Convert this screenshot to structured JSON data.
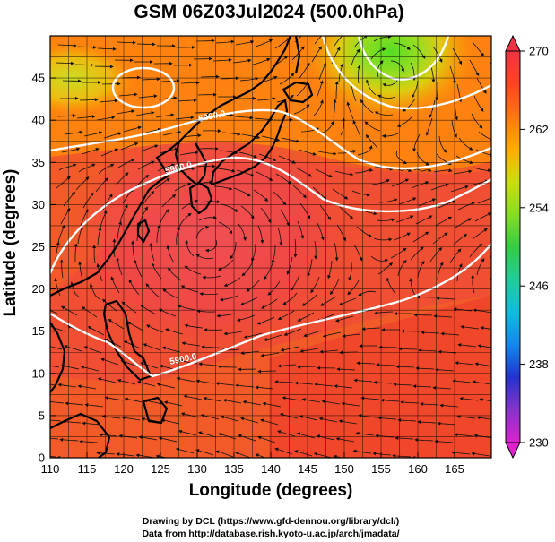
{
  "title": "GSM 06Z03Jul2024 (500.0hPa)",
  "x_axis": {
    "label": "Longitude (degrees)",
    "range": [
      110,
      170
    ],
    "ticks": [
      110,
      115,
      120,
      125,
      130,
      135,
      140,
      145,
      150,
      155,
      160,
      165
    ]
  },
  "y_axis": {
    "label": "Latitude  (degrees)",
    "range": [
      0,
      50
    ],
    "ticks": [
      0,
      5,
      10,
      15,
      20,
      25,
      30,
      35,
      40,
      45
    ]
  },
  "colorbar": {
    "labels": [
      "270",
      "262",
      "254",
      "246",
      "238",
      "230"
    ],
    "min": 230,
    "max": 270,
    "colors": [
      "#dd22cc",
      "#8833cc",
      "#2233cc",
      "#1188ee",
      "#11bbdd",
      "#22cc99",
      "#33cc44",
      "#88dd22",
      "#ccdd11",
      "#ffaa00",
      "#ff7711",
      "#ff4422",
      "#ee3344"
    ]
  },
  "contours": [
    {
      "label": "5900.0",
      "level": 5900
    },
    {
      "label": "5900.0",
      "level": 5900
    },
    {
      "label": "5900.0",
      "level": 5900
    }
  ],
  "credits": {
    "line1": "Drawing by DCL (https://www.gfd-dennou.org/library/dcl/)",
    "line2": "Data from http://database.rish.kyoto-u.ac.jp/arch/jmadata/"
  }
}
